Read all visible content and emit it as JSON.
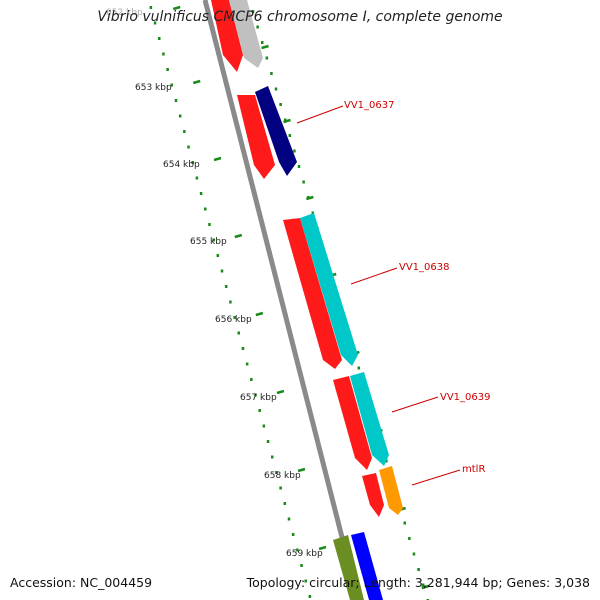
{
  "title": "Vibrio vulnificus CMCP6 chromosome I, complete genome",
  "accession_label": "Accession: NC_004459",
  "summary_label": "Topology: circular; Length: 3,281,944 bp; Genes: 3,038",
  "scale_labels": [
    "652 kbp",
    "653 kbp",
    "654 kbp",
    "655 kbp",
    "656 kbp",
    "657 kbp",
    "658 kbp",
    "659 kbp"
  ],
  "gene_labels": [
    "VV1_0637",
    "VV1_0638",
    "VV1_0639",
    "mtlR"
  ],
  "colors": {
    "backbone": "#8a8a8a",
    "scale_ticks": "#1a8a1a",
    "label": "#cc0000",
    "cds": "#ff0000",
    "gene_grey": "#c0c0c0",
    "gene_navy": "#000080",
    "gene_cyan": "#00c8c8",
    "gene_orange": "#ff9900",
    "gene_olive": "#6b8e23",
    "gene_blue": "#0000ff"
  }
}
